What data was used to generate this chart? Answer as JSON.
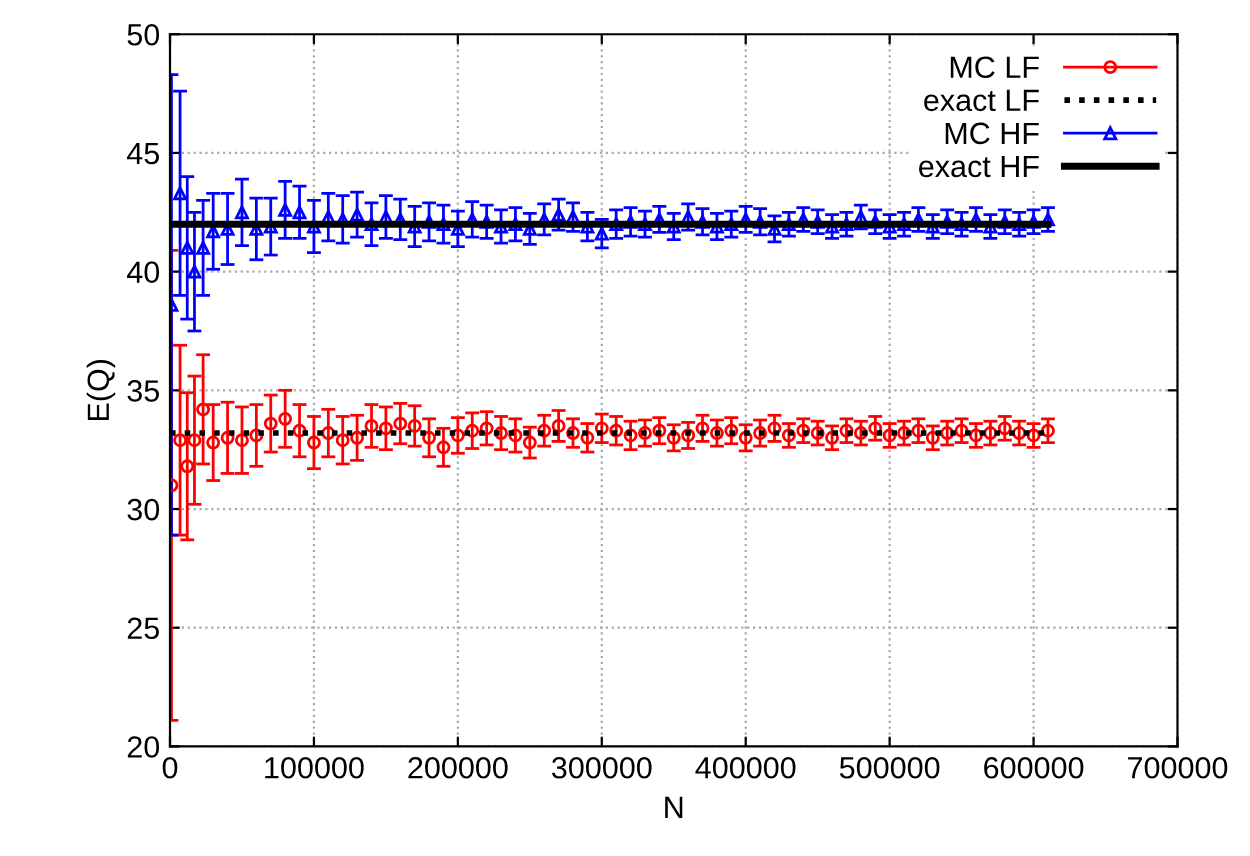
{
  "chart_data": {
    "type": "scatter",
    "xlabel": "N",
    "ylabel": "E(Q)",
    "xlim": [
      0,
      700000
    ],
    "ylim": [
      20,
      50
    ],
    "xticks": [
      0,
      100000,
      200000,
      300000,
      400000,
      500000,
      600000,
      700000
    ],
    "yticks": [
      20,
      25,
      30,
      35,
      40,
      45,
      50
    ],
    "grid": true,
    "legend": "top right",
    "series": [
      {
        "name": "MC LF",
        "color": "#ff0000",
        "marker": "circle",
        "x": [
          1000,
          7000,
          12000,
          17000,
          23000,
          30000,
          40000,
          50000,
          60000,
          70000,
          80000,
          90000,
          100000,
          110000,
          120000,
          130000,
          140000,
          150000,
          160000,
          170000,
          180000,
          190000,
          200000,
          210000,
          220000,
          230000,
          240000,
          250000,
          260000,
          270000,
          280000,
          290000,
          300000,
          310000,
          320000,
          330000,
          340000,
          350000,
          360000,
          370000,
          380000,
          390000,
          400000,
          410000,
          420000,
          430000,
          440000,
          450000,
          460000,
          470000,
          480000,
          490000,
          500000,
          510000,
          520000,
          530000,
          540000,
          550000,
          560000,
          570000,
          580000,
          590000,
          600000,
          610000
        ],
        "values": [
          31.0,
          32.9,
          31.8,
          32.9,
          34.2,
          32.8,
          33.0,
          32.9,
          33.1,
          33.6,
          33.8,
          33.3,
          32.8,
          33.2,
          32.9,
          33.0,
          33.5,
          33.4,
          33.6,
          33.5,
          33.0,
          32.6,
          33.1,
          33.3,
          33.4,
          33.2,
          33.1,
          32.8,
          33.3,
          33.5,
          33.2,
          33.0,
          33.4,
          33.3,
          33.1,
          33.2,
          33.3,
          33.0,
          33.1,
          33.4,
          33.2,
          33.3,
          33.0,
          33.2,
          33.4,
          33.1,
          33.3,
          33.2,
          33.0,
          33.3,
          33.2,
          33.4,
          33.1,
          33.2,
          33.3,
          33.0,
          33.2,
          33.3,
          33.1,
          33.2,
          33.4,
          33.2,
          33.1,
          33.3
        ],
        "errors": [
          9.9,
          4.0,
          3.1,
          2.7,
          2.3,
          1.6,
          1.5,
          1.4,
          1.3,
          1.2,
          1.2,
          1.1,
          1.1,
          1.0,
          1.0,
          0.95,
          0.9,
          0.9,
          0.85,
          0.85,
          0.8,
          0.8,
          0.75,
          0.75,
          0.7,
          0.7,
          0.7,
          0.65,
          0.65,
          0.65,
          0.6,
          0.6,
          0.6,
          0.6,
          0.6,
          0.55,
          0.55,
          0.55,
          0.55,
          0.55,
          0.55,
          0.55,
          0.55,
          0.55,
          0.55,
          0.5,
          0.5,
          0.5,
          0.5,
          0.5,
          0.5,
          0.5,
          0.5,
          0.5,
          0.5,
          0.5,
          0.5,
          0.5,
          0.5,
          0.5,
          0.5,
          0.5,
          0.5,
          0.5
        ]
      },
      {
        "name": "exact LF",
        "type": "line",
        "color": "#000000",
        "line_style": "dotted",
        "x": [
          0,
          610000
        ],
        "values": [
          33.2,
          33.2
        ]
      },
      {
        "name": "MC HF",
        "color": "#0000ff",
        "marker": "triangle",
        "x": [
          1000,
          7000,
          12000,
          17000,
          23000,
          30000,
          40000,
          50000,
          60000,
          70000,
          80000,
          90000,
          100000,
          110000,
          120000,
          130000,
          140000,
          150000,
          160000,
          170000,
          180000,
          190000,
          200000,
          210000,
          220000,
          230000,
          240000,
          250000,
          260000,
          270000,
          280000,
          290000,
          300000,
          310000,
          320000,
          330000,
          340000,
          350000,
          360000,
          370000,
          380000,
          390000,
          400000,
          410000,
          420000,
          430000,
          440000,
          450000,
          460000,
          470000,
          480000,
          490000,
          500000,
          510000,
          520000,
          530000,
          540000,
          550000,
          560000,
          570000,
          580000,
          590000,
          600000,
          610000
        ],
        "values": [
          38.6,
          43.3,
          41.0,
          40.0,
          41.0,
          41.7,
          41.8,
          42.5,
          41.8,
          41.9,
          42.6,
          42.5,
          41.9,
          42.3,
          42.2,
          42.4,
          42.0,
          42.3,
          42.2,
          41.9,
          42.1,
          42.0,
          41.8,
          42.2,
          42.1,
          41.9,
          42.0,
          41.8,
          42.2,
          42.4,
          42.3,
          41.9,
          41.6,
          42.0,
          42.1,
          42.0,
          42.2,
          41.9,
          42.3,
          42.1,
          41.9,
          42.0,
          42.2,
          42.1,
          41.8,
          42.0,
          42.2,
          42.1,
          41.9,
          42.0,
          42.3,
          42.1,
          41.9,
          42.0,
          42.2,
          41.9,
          42.1,
          42.0,
          42.2,
          41.9,
          42.1,
          42.0,
          42.1,
          42.2
        ],
        "errors": [
          9.7,
          4.3,
          3.0,
          2.5,
          2.0,
          1.6,
          1.5,
          1.4,
          1.3,
          1.2,
          1.2,
          1.1,
          1.1,
          1.0,
          1.0,
          0.95,
          0.9,
          0.9,
          0.85,
          0.85,
          0.8,
          0.8,
          0.75,
          0.75,
          0.7,
          0.7,
          0.7,
          0.65,
          0.65,
          0.65,
          0.6,
          0.6,
          0.6,
          0.6,
          0.6,
          0.55,
          0.55,
          0.55,
          0.55,
          0.55,
          0.55,
          0.55,
          0.55,
          0.55,
          0.55,
          0.5,
          0.5,
          0.5,
          0.5,
          0.5,
          0.5,
          0.5,
          0.5,
          0.5,
          0.5,
          0.5,
          0.5,
          0.5,
          0.5,
          0.5,
          0.5,
          0.5,
          0.5,
          0.5
        ]
      },
      {
        "name": "exact HF",
        "type": "line",
        "color": "#000000",
        "line_style": "solid",
        "x": [
          0,
          610000
        ],
        "values": [
          42.0,
          42.0
        ]
      }
    ]
  }
}
